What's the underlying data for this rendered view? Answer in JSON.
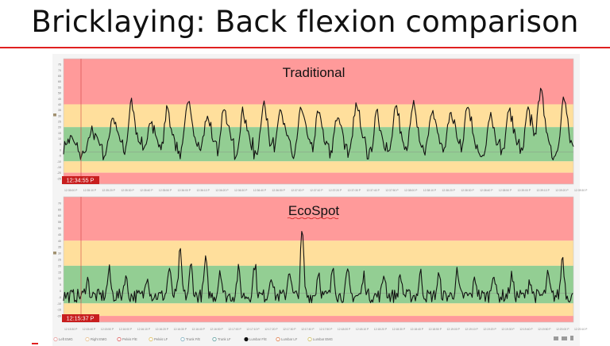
{
  "slide": {
    "title": "Bricklaying: Back flexion comparison"
  },
  "colors": {
    "red_zone": "#ff9a9a",
    "yellow_zone": "#ffdf9c",
    "green_zone": "#93ce93",
    "trace": "#111111",
    "accent": "#e02020"
  },
  "chart_data": [
    {
      "type": "line",
      "title": "Traditional",
      "ylim": [
        -30,
        80
      ],
      "zones": [
        {
          "name": "red",
          "from": 40,
          "to": 80
        },
        {
          "name": "yellow",
          "from": 20,
          "to": 40
        },
        {
          "name": "green",
          "from": -10,
          "to": 20
        },
        {
          "name": "yellow",
          "from": -20,
          "to": -10
        },
        {
          "name": "red",
          "from": -30,
          "to": -20
        }
      ],
      "y_ticks": [
        75,
        70,
        65,
        60,
        55,
        50,
        45,
        40,
        35,
        30,
        25,
        20,
        15,
        10,
        5,
        0,
        -5,
        -10,
        -15,
        -20,
        -25
      ],
      "x_ticks": [
        "12:35:00 P",
        "12:35:10 P",
        "12:35:20 P",
        "12:35:30 P",
        "12:35:40 P",
        "12:35:50 P",
        "12:36:00 P",
        "12:36:10 P",
        "12:36:20 P",
        "12:36:30 P",
        "12:36:40 P",
        "12:36:50 P",
        "12:37:00 P",
        "12:37:10 P",
        "12:37:20 P",
        "12:37:30 P",
        "12:37:40 P",
        "12:37:50 P",
        "12:38:00 P",
        "12:38:10 P",
        "12:38:20 P",
        "12:38:30 P",
        "12:38:40 P",
        "12:38:50 P",
        "12:39:00 P",
        "12:39:10 P",
        "12:39:20 P",
        "12:39:30 P"
      ],
      "cursor_time": "12:34:55 P",
      "peaks": [
        [
          0.2,
          8
        ],
        [
          1.5,
          18
        ],
        [
          2.6,
          30
        ],
        [
          3.6,
          42
        ],
        [
          4.6,
          28
        ],
        [
          5.5,
          36
        ],
        [
          6.6,
          44
        ],
        [
          7.6,
          30
        ],
        [
          8.5,
          38
        ],
        [
          9.5,
          34
        ],
        [
          10.6,
          42
        ],
        [
          11.5,
          36
        ],
        [
          12.6,
          38
        ],
        [
          13.5,
          34
        ],
        [
          14.5,
          30
        ],
        [
          15.5,
          40
        ],
        [
          16.6,
          32
        ],
        [
          17.6,
          36
        ],
        [
          18.5,
          42
        ],
        [
          19.5,
          34
        ],
        [
          20.5,
          36
        ],
        [
          21.4,
          40
        ],
        [
          22.6,
          32
        ],
        [
          23.6,
          34
        ],
        [
          24.6,
          36
        ],
        [
          25.3,
          52
        ],
        [
          26.5,
          44
        ],
        [
          27.4,
          36
        ]
      ]
    },
    {
      "type": "line",
      "title": "EcoSpot",
      "ylim": [
        -25,
        75
      ],
      "zones": [
        {
          "name": "red",
          "from": 40,
          "to": 75
        },
        {
          "name": "yellow",
          "from": 20,
          "to": 40
        },
        {
          "name": "green",
          "from": -10,
          "to": 20
        },
        {
          "name": "yellow",
          "from": -20,
          "to": -10
        },
        {
          "name": "red",
          "from": -25,
          "to": -20
        }
      ],
      "y_ticks": [
        70,
        65,
        60,
        55,
        50,
        45,
        40,
        35,
        30,
        25,
        20,
        15,
        10,
        5,
        0,
        -5,
        -10,
        -15,
        -20
      ],
      "x_ticks": [
        "12:15:30 P",
        "12:15:40 P",
        "12:15:50 P",
        "12:16:00 P",
        "12:16:10 P",
        "12:16:20 P",
        "12:16:30 P",
        "12:16:40 P",
        "12:16:50 P",
        "12:17:00 P",
        "12:17:10 P",
        "12:17:20 P",
        "12:17:30 P",
        "12:17:40 P",
        "12:17:50 P",
        "12:18:00 P",
        "12:18:10 P",
        "12:18:20 P",
        "12:18:30 P",
        "12:18:40 P",
        "12:18:50 P",
        "12:19:00 P",
        "12:19:10 P",
        "12:19:20 P",
        "12:19:30 P",
        "12:19:40 P",
        "12:19:50 P",
        "12:20:00 P",
        "12:20:10 P"
      ],
      "cursor_time": "12:15:37 P",
      "peaks": [
        [
          1.3,
          10
        ],
        [
          2.5,
          16
        ],
        [
          3.4,
          12
        ],
        [
          4.6,
          14
        ],
        [
          5.8,
          18
        ],
        [
          6.4,
          30
        ],
        [
          7.0,
          20
        ],
        [
          7.8,
          24
        ],
        [
          8.6,
          18
        ],
        [
          9.6,
          16
        ],
        [
          10.5,
          22
        ],
        [
          11.4,
          14
        ],
        [
          12.4,
          18
        ],
        [
          13.1,
          47
        ],
        [
          14.0,
          16
        ],
        [
          14.8,
          20
        ],
        [
          15.6,
          14
        ],
        [
          16.5,
          12
        ],
        [
          17.6,
          14
        ],
        [
          18.5,
          12
        ],
        [
          19.6,
          14
        ],
        [
          20.6,
          12
        ],
        [
          21.6,
          14
        ],
        [
          22.6,
          10
        ],
        [
          23.6,
          16
        ],
        [
          24.6,
          12
        ],
        [
          25.6,
          10
        ],
        [
          26.6,
          12
        ],
        [
          27.4,
          28
        ]
      ]
    }
  ],
  "legend": [
    {
      "label": "Left EMG",
      "color": "#e8a0a0",
      "filled": false
    },
    {
      "label": "Right EMG",
      "color": "#e8c090",
      "filled": false
    },
    {
      "label": "Pelvis F/E",
      "color": "#e06060",
      "filled": false
    },
    {
      "label": "Pelvis LF",
      "color": "#e0c060",
      "filled": false
    },
    {
      "label": "Trunk F/E",
      "color": "#80b0c0",
      "filled": false
    },
    {
      "label": "Trunk LF",
      "color": "#60a0a0",
      "filled": false
    },
    {
      "label": "Lumbar F/E",
      "color": "#111111",
      "filled": true
    },
    {
      "label": "Lumbar LF",
      "color": "#e08050",
      "filled": false
    },
    {
      "label": "Lumbar EMG",
      "color": "#d0c060",
      "filled": false
    }
  ],
  "toolbar_icons": [
    "chat-icon",
    "video-icon",
    "trash-icon"
  ]
}
